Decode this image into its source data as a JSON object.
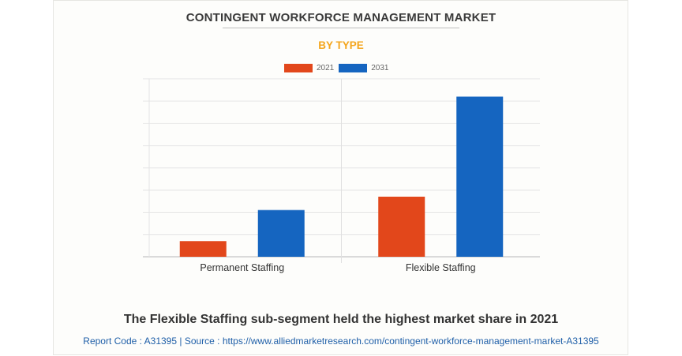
{
  "chart_data": {
    "type": "bar",
    "title": "CONTINGENT WORKFORCE MANAGEMENT MARKET",
    "subtitle": "BY TYPE",
    "categories": [
      "Permanent Staffing",
      "Flexible Staffing"
    ],
    "series": [
      {
        "name": "2021",
        "values": [
          0.7,
          2.7
        ],
        "color": "#e2471b"
      },
      {
        "name": "2031",
        "values": [
          2.1,
          7.2
        ],
        "color": "#1565c0"
      }
    ],
    "ylim": [
      0,
      8
    ],
    "grid": true,
    "legend": "top-center",
    "xlabel": "",
    "ylabel": ""
  },
  "footer": {
    "text": "The Flexible Staffing sub-segment held the highest market share in 2021",
    "source": "Report Code : A31395  |  Source : https://www.alliedmarketresearch.com/contingent-workforce-management-market-A31395"
  }
}
